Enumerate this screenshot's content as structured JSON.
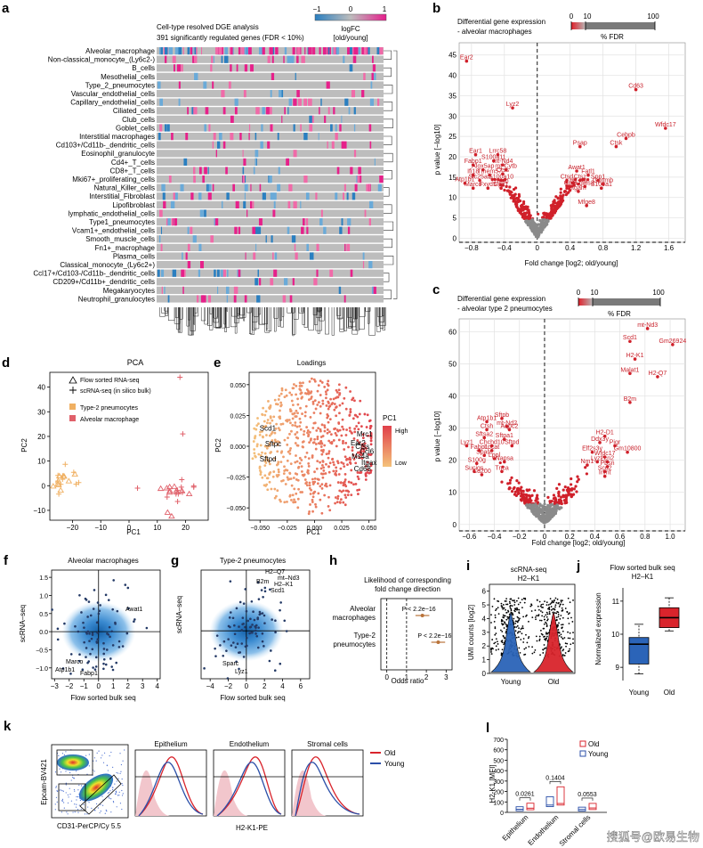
{
  "panel_letters": [
    "a",
    "b",
    "c",
    "d",
    "e",
    "f",
    "g",
    "h",
    "i",
    "j",
    "k",
    "l"
  ],
  "a": {
    "title": "Cell-type resolved DGE analysis",
    "subtitle": "391 significantly regulated genes (FDR < 10%)",
    "scale_label": "logFC\n[old/young]",
    "scale_ticks": [
      "−1",
      "0",
      "1"
    ],
    "rows": [
      "Alveolar_macrophage",
      "Non-classical_monocyte_(Ly6c2-)",
      "B_cells",
      "Mesothelial_cells",
      "Type_2_pneumocytes",
      "Vascular_endothelial_cells",
      "Capillary_endothelial_cells",
      "Ciliated_cells",
      "Club_cells",
      "Goblet_cells",
      "Interstitial macrophages",
      "Cd103+/Cd11b-_dendritic_cells",
      "Eosinophil_granulocyte",
      "Cd4+_T_cells",
      "CD8+_T_cells",
      "Mki67+_proliferating_cells",
      "Natural_Killer_cells",
      "Interstitial_Fibroblast",
      "Lipofibroblast",
      "lymphatic_endothelial_cells",
      "Type1_pneumocytes",
      "Vcam1+_endothelial_cells",
      "Smooth_muscle_cells",
      "Fn1+_macrophage",
      "Plasma_cells",
      "Classical_monocyte_(Ly6c2+)",
      "Ccl17+/Cd103-/Cd11b-_dendritic_cells",
      "CD209+/Cd11b+_dendritic_cells",
      "Megakaryocytes",
      "Neutrophil_granulocytes"
    ]
  },
  "b": {
    "title": "Differential gene expression",
    "subtitle": "- alveolar macrophages",
    "fdr_ticks": [
      "0",
      "10",
      "100"
    ],
    "fdr_label": "% FDR",
    "xlabel": "Fold change [log2; old/young]",
    "ylabel": "p value [−log10]",
    "x_ticks": [
      "−0.8",
      "−0.4",
      "0",
      "0.4",
      "0.8",
      "1.2",
      "1.6"
    ],
    "y_ticks": [
      "0",
      "5",
      "10",
      "15",
      "20",
      "25",
      "30",
      "35",
      "40",
      "45"
    ],
    "genes": [
      {
        "name": "Ear2",
        "x": -0.86,
        "y": 43.5
      },
      {
        "name": "Lyz2",
        "x": -0.3,
        "y": 32
      },
      {
        "name": "Cd63",
        "x": 1.2,
        "y": 36.5
      },
      {
        "name": "Wfdc17",
        "x": 1.56,
        "y": 27
      },
      {
        "name": "Cebpb",
        "x": 1.08,
        "y": 24.5
      },
      {
        "name": "Ctsk",
        "x": 0.96,
        "y": 22.5
      },
      {
        "name": "Psap",
        "x": 0.52,
        "y": 22.5
      },
      {
        "name": "Ear1",
        "x": -0.75,
        "y": 20.5
      },
      {
        "name": "Lrrc58",
        "x": -0.48,
        "y": 20.5
      },
      {
        "name": "S100a11",
        "x": -0.53,
        "y": 19
      },
      {
        "name": "Fabp1",
        "x": -0.78,
        "y": 18
      },
      {
        "name": "mt-Nd4",
        "x": -0.42,
        "y": 18
      },
      {
        "name": "Alox5ap",
        "x": -0.66,
        "y": 16.8
      },
      {
        "name": "mt-Cytb",
        "x": -0.38,
        "y": 16.8
      },
      {
        "name": "Ifi18",
        "x": -0.78,
        "y": 15.5
      },
      {
        "name": "Tmem57",
        "x": -0.58,
        "y": 15.5
      },
      {
        "name": "Ctss",
        "x": -0.42,
        "y": 15.8
      },
      {
        "name": "Slc25a5",
        "x": -0.7,
        "y": 14.2
      },
      {
        "name": "S100a10",
        "x": -0.44,
        "y": 14.2
      },
      {
        "name": "Atp1b1",
        "x": -0.88,
        "y": 13.5
      },
      {
        "name": "Ifi30",
        "x": -0.42,
        "y": 13
      },
      {
        "name": "Marco",
        "x": -0.78,
        "y": 12.3
      },
      {
        "name": "Fxyd5",
        "x": -0.6,
        "y": 12.3
      },
      {
        "name": "Gpx1",
        "x": -0.44,
        "y": 12.3
      },
      {
        "name": "Awat1",
        "x": 0.48,
        "y": 16.5
      },
      {
        "name": "Fatl1",
        "x": 0.62,
        "y": 15.5
      },
      {
        "name": "Ctsd",
        "x": 0.36,
        "y": 14.2
      },
      {
        "name": "Ctsz",
        "x": 0.52,
        "y": 14.2
      },
      {
        "name": "Spp1",
        "x": 0.74,
        "y": 14.2
      },
      {
        "name": "H2-K1",
        "x": 0.5,
        "y": 13.3
      },
      {
        "name": "Gpnmb",
        "x": 0.8,
        "y": 13.3
      },
      {
        "name": "Ccl6",
        "x": 0.4,
        "y": 12.7
      },
      {
        "name": "Lgals3",
        "x": 0.58,
        "y": 12.7
      },
      {
        "name": "S100a1",
        "x": 0.78,
        "y": 12.3
      },
      {
        "name": "Itgam",
        "x": 0.5,
        "y": 11.5
      },
      {
        "name": "Mfge8",
        "x": 0.6,
        "y": 8
      }
    ]
  },
  "c": {
    "title": "Differential gene expression",
    "subtitle": "- alveolar type 2 pneumocytes",
    "fdr_ticks": [
      "0",
      "10",
      "100"
    ],
    "fdr_label": "% FDR",
    "xlabel": "Fold change [log2; old/young]",
    "ylabel": "p value [−log10]",
    "x_ticks": [
      "−0.6",
      "−0.4",
      "−0.2",
      "0",
      "0.2",
      "0.4",
      "0.6",
      "0.8",
      "1.0"
    ],
    "y_ticks": [
      "0",
      "10",
      "20",
      "30",
      "40",
      "50",
      "60"
    ],
    "genes": [
      {
        "name": "mt-Nd3",
        "x": 0.82,
        "y": 61
      },
      {
        "name": "Scd1",
        "x": 0.68,
        "y": 57
      },
      {
        "name": "Gm26924",
        "x": 1.02,
        "y": 56
      },
      {
        "name": "H2-K1",
        "x": 0.72,
        "y": 51.5
      },
      {
        "name": "Malat1",
        "x": 0.68,
        "y": 47
      },
      {
        "name": "H2-Q7",
        "x": 0.9,
        "y": 46
      },
      {
        "name": "B2m",
        "x": 0.68,
        "y": 38
      },
      {
        "name": "Sftpb",
        "x": -0.34,
        "y": 33
      },
      {
        "name": "Atp1b1",
        "x": -0.46,
        "y": 32
      },
      {
        "name": "mt-Nd2",
        "x": -0.3,
        "y": 30.5
      },
      {
        "name": "Ctsh",
        "x": -0.46,
        "y": 29.5
      },
      {
        "name": "Aqpc2",
        "x": -0.28,
        "y": 29.5
      },
      {
        "name": "Sftsa2",
        "x": -0.48,
        "y": 27
      },
      {
        "name": "Sftpa1",
        "x": -0.32,
        "y": 26.5
      },
      {
        "name": "Lyz1",
        "x": -0.62,
        "y": 24.5
      },
      {
        "name": "Chchd10",
        "x": -0.42,
        "y": 24.5
      },
      {
        "name": "Sftpd",
        "x": -0.26,
        "y": 24.5
      },
      {
        "name": "Fabp1",
        "x": -0.52,
        "y": 23
      },
      {
        "name": "Lpcat",
        "x": -0.42,
        "y": 23
      },
      {
        "name": "Sparc",
        "x": -0.48,
        "y": 21.5
      },
      {
        "name": "Lppl",
        "x": -0.4,
        "y": 20.5
      },
      {
        "name": "S100g",
        "x": -0.54,
        "y": 19
      },
      {
        "name": "Napsa",
        "x": -0.32,
        "y": 19.5
      },
      {
        "name": "Sucigs",
        "x": -0.56,
        "y": 16.5
      },
      {
        "name": "Cd200",
        "x": -0.5,
        "y": 15.5
      },
      {
        "name": "Tnca",
        "x": -0.34,
        "y": 16.5
      },
      {
        "name": "H2-D1",
        "x": 0.48,
        "y": 27.5
      },
      {
        "name": "Ddx3y",
        "x": 0.44,
        "y": 25.5
      },
      {
        "name": "Pigr",
        "x": 0.56,
        "y": 24.5
      },
      {
        "name": "Elf2s3y",
        "x": 0.38,
        "y": 22.5
      },
      {
        "name": "Gm10800",
        "x": 0.66,
        "y": 22.5
      },
      {
        "name": "Wfdc17",
        "x": 0.48,
        "y": 21
      },
      {
        "name": "Lyz2",
        "x": 0.42,
        "y": 19.5
      },
      {
        "name": "Lcn2",
        "x": 0.5,
        "y": 19.5
      },
      {
        "name": "Nm1",
        "x": 0.34,
        "y": 18.5
      },
      {
        "name": "Pbsn",
        "x": 0.5,
        "y": 18
      },
      {
        "name": "Scd2",
        "x": 0.48,
        "y": 16.5
      },
      {
        "name": "Inmt",
        "x": 0.48,
        "y": 15
      }
    ]
  },
  "d": {
    "title": "PCA",
    "legend": [
      "Flow sorted RNA-seq",
      "scRNA-seq (in silico bulk)",
      "Type-2 pneumocytes",
      "Alveolar macrophage"
    ],
    "xlabel": "PC1",
    "ylabel": "PC2",
    "x_ticks": [
      "−20",
      "−10",
      "0",
      "10",
      "20"
    ],
    "y_ticks": [
      "−10",
      "0",
      "10",
      "20",
      "30",
      "40"
    ],
    "colors": {
      "type2": "#f0b062",
      "macrophage": "#e0606a"
    }
  },
  "e": {
    "title": "Loadings",
    "xlabel": "PC1",
    "ylabel": "PC2",
    "x_ticks": [
      "−0.050",
      "−0.025",
      "0.000",
      "0.025",
      "0.050"
    ],
    "y_ticks": [
      "−0.050",
      "−0.025",
      "0.000",
      "0.025",
      "0.050"
    ],
    "legend_title": "PC1",
    "legend_high": "High",
    "legend_low": "Low",
    "genes": [
      "Scd1",
      "Sftpc",
      "Sftpd",
      "Mrc1",
      "Ear2",
      "Ctss",
      "Ccl6",
      "Ms4a",
      "Itgax",
      "Cd68"
    ]
  },
  "f": {
    "title": "Alveolar macrophages",
    "xlabel": "Flow sorted bulk seq",
    "ylabel": "scRNA–seq",
    "x_ticks": [
      "−3",
      "−2",
      "−1",
      "0",
      "1",
      "2",
      "3",
      "4"
    ],
    "y_ticks": [
      "−1.0",
      "−0.5",
      "0.0",
      "0.5",
      "1.0",
      "1.5"
    ],
    "genes": [
      "Awat1",
      "Marco",
      "Atp1b1",
      "Fabp1"
    ]
  },
  "g": {
    "title": "Type-2 pneumocytes",
    "xlabel": "Flow sorted bulk seq",
    "ylabel": "scRNA–seq",
    "x_ticks": [
      "−4",
      "−2",
      "0",
      "2",
      "4",
      "6"
    ],
    "genes": [
      "H2–Q7",
      "mt–Nd3",
      "B2m",
      "H2–K1",
      "Scd1",
      "Sparc",
      "Lyz1"
    ]
  },
  "h": {
    "title": "Likelihood of corresponding\nfold  change direction",
    "rows": [
      "Alveolar\nmacrophages",
      "Type-2\npneumocytes"
    ],
    "pvals": [
      "P < 2.2e−16",
      "P < 2.2e−16"
    ],
    "odds": [
      1.8,
      2.6
    ],
    "xlabel": "Odds ratio",
    "x_ticks": [
      "0",
      "1",
      "2",
      "3"
    ]
  },
  "i": {
    "title": "scRNA-seq",
    "subtitle": "H2–K1",
    "ylabel": "UMI counts [log2]",
    "y_ticks": [
      "0",
      "1",
      "2",
      "3",
      "4",
      "5",
      "6"
    ],
    "groups": [
      "Young",
      "Old"
    ],
    "colors": {
      "young": "#2b64b8",
      "old": "#d9242c"
    }
  },
  "j": {
    "title": "Flow sorted bulk seq",
    "subtitle": "H2–K1",
    "ylabel": "Normalized expression",
    "y_ticks": [
      "9",
      "10",
      "11"
    ],
    "groups": [
      "Young",
      "Old"
    ],
    "young": {
      "min": 8.8,
      "q1": 9.1,
      "median": 9.7,
      "q3": 9.9,
      "max": 10.3
    },
    "old": {
      "min": 10.1,
      "q1": 10.2,
      "median": 10.5,
      "q3": 10.8,
      "max": 11.1
    }
  },
  "k": {
    "gate_ylabel": "Epcam-BV421",
    "gate_xlabel": "CD31-PerCP/Cy 5.5",
    "histograms": [
      "Epithelium",
      "Endothelium",
      "Stromal cells"
    ],
    "xlabel": "H2-K1-PE",
    "legend": [
      "Old",
      "Young"
    ]
  },
  "l": {
    "ylabel": "H2-K1 [MFI]",
    "y_ticks": [
      "0",
      "100",
      "200",
      "300",
      "400",
      "500",
      "600",
      "700"
    ],
    "categories": [
      "Epithelium",
      "Endothelium",
      "Stromal cells"
    ],
    "pvals": [
      "0.0261",
      "0.1404",
      "0.0553"
    ],
    "legend": [
      "Old",
      "Young"
    ],
    "young_medians": [
      30,
      70,
      28
    ],
    "old_medians": [
      40,
      85,
      42
    ]
  },
  "watermark": "搜狐号@欧易生物"
}
